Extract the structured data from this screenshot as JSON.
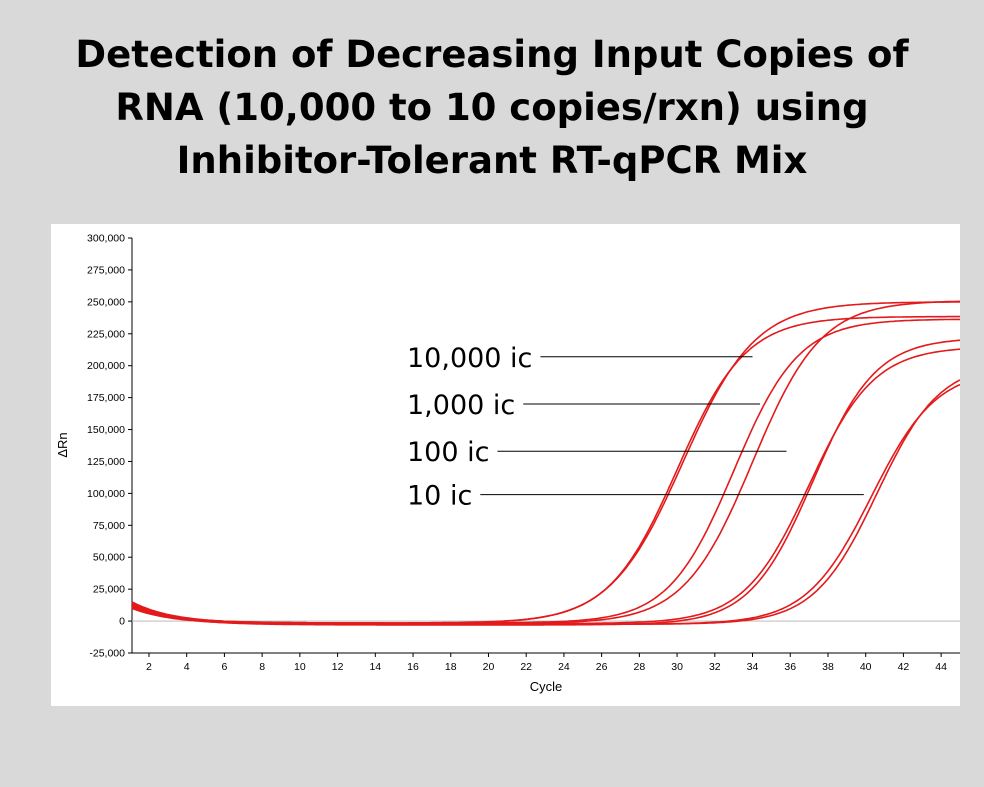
{
  "title_lines": [
    "Detection of Decreasing Input Copies of",
    "RNA (10,000 to 10 copies/rxn) using",
    "Inhibitor-Tolerant RT-qPCR Mix"
  ],
  "colors": {
    "background": "#d9d9d9",
    "plot_background": "#ffffff",
    "curve": "#e31a1c",
    "axis": "#000000"
  },
  "chart_data": {
    "type": "line",
    "title": "",
    "xlabel": "Cycle",
    "ylabel": "ΔRn",
    "xlim": [
      1.1,
      45
    ],
    "ylim": [
      -25000,
      300000
    ],
    "x_ticks": [
      2,
      4,
      6,
      8,
      10,
      12,
      14,
      16,
      18,
      20,
      22,
      24,
      26,
      28,
      30,
      32,
      34,
      36,
      38,
      40,
      42,
      44
    ],
    "y_ticks": [
      -25000,
      0,
      25000,
      50000,
      75000,
      100000,
      125000,
      150000,
      175000,
      200000,
      225000,
      250000,
      275000,
      300000
    ],
    "y_tick_labels": [
      "-25,000",
      "0",
      "25,000",
      "50,000",
      "75,000",
      "100,000",
      "125,000",
      "150,000",
      "175,000",
      "200,000",
      "225,000",
      "250,000",
      "275,000",
      "300,000"
    ],
    "grid": false,
    "legend": "none",
    "series": [
      {
        "group": "10,000 ic",
        "curve": {
          "base_start": 15000,
          "dip": -2000,
          "plateau": 252000,
          "midpoint": 30.3,
          "slope": 0.52
        }
      },
      {
        "group": "10,000 ic",
        "curve": {
          "base_start": 11000,
          "dip": -1500,
          "plateau": 240000,
          "midpoint": 30.0,
          "slope": 0.55
        }
      },
      {
        "group": "1,000 ic",
        "curve": {
          "base_start": 14000,
          "dip": -2000,
          "plateau": 253000,
          "midpoint": 34.0,
          "slope": 0.55
        }
      },
      {
        "group": "1,000 ic",
        "curve": {
          "base_start": 11000,
          "dip": -1500,
          "plateau": 238000,
          "midpoint": 33.0,
          "slope": 0.58
        }
      },
      {
        "group": "100 ic",
        "curve": {
          "base_start": 13000,
          "dip": -3000,
          "plateau": 225000,
          "midpoint": 37.2,
          "slope": 0.6
        }
      },
      {
        "group": "100 ic",
        "curve": {
          "base_start": 10000,
          "dip": -2000,
          "plateau": 217000,
          "midpoint": 37.0,
          "slope": 0.58
        }
      },
      {
        "group": "10 ic",
        "curve": {
          "base_start": 12000,
          "dip": -2500,
          "plateau": 205000,
          "midpoint": 40.6,
          "slope": 0.6
        }
      },
      {
        "group": "10 ic",
        "curve": {
          "base_start": 10000,
          "dip": -2500,
          "plateau": 200000,
          "midpoint": 40.3,
          "slope": 0.58
        }
      }
    ],
    "annotations": [
      {
        "text": "10,000 ic",
        "x": 34.0,
        "y": 207000
      },
      {
        "text": "1,000 ic",
        "x": 34.4,
        "y": 170000
      },
      {
        "text": "100 ic",
        "x": 35.8,
        "y": 133000
      },
      {
        "text": "10 ic",
        "x": 39.9,
        "y": 99000
      }
    ]
  }
}
